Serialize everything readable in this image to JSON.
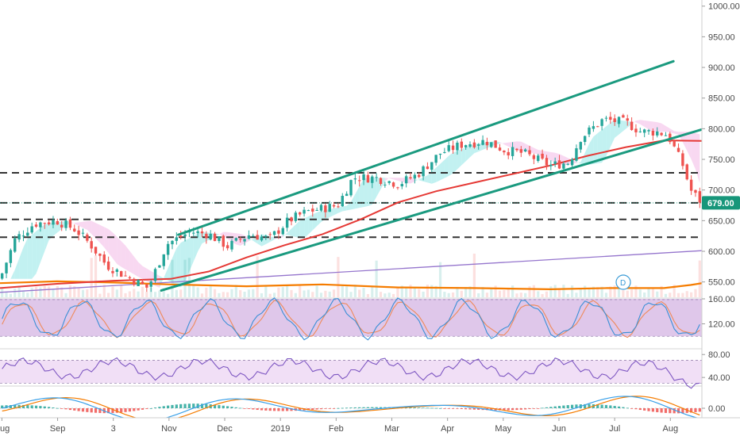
{
  "colors": {
    "up_candle": "#26a69a",
    "down_candle": "#ef5350",
    "trendline": "#1a9a7f",
    "ema_red": "#e53935",
    "ma_orange": "#f57c00",
    "ma_purple": "#9575cd",
    "cloud_cyan": "#8fe6e6",
    "cloud_pink": "#f2b8e6",
    "price_tag": "#17967a",
    "stoch_band": "#d9bde6",
    "rsi_band": "#f0dcf5",
    "macd_line": "#3aa0e8",
    "signal_line": "#f57c00",
    "hist_up": "#26a69a",
    "hist_down": "#ef5350"
  },
  "last_price_label": "679.00",
  "badge_label": "D",
  "chart_data": {
    "type": "line",
    "title": "",
    "x_tick_labels": [
      "Aug",
      "Sep",
      "3",
      "Nov",
      "Dec",
      "2019",
      "Feb",
      "Mar",
      "Apr",
      "May",
      "Jun",
      "Jul",
      "Aug"
    ],
    "y_tick_labels": [
      "1000.00",
      "950.00",
      "900.00",
      "850.00",
      "800.00",
      "750.00",
      "700.00",
      "650.00",
      "600.00",
      "550.00"
    ],
    "ylim": [
      525,
      1010
    ],
    "x_range_days": [
      0,
      370
    ],
    "last_price": 679.0,
    "price_series": {
      "name": "",
      "x_days": [
        0,
        8,
        18,
        30,
        40,
        48,
        56,
        66,
        78,
        88,
        96,
        100,
        110,
        120,
        132,
        142,
        152,
        162,
        170,
        178,
        186,
        198,
        210,
        220,
        232,
        244,
        256,
        266,
        276,
        290,
        300,
        306,
        318,
        330,
        338,
        346,
        352,
        360,
        364,
        370
      ],
      "close": [
        555,
        620,
        645,
        650,
        635,
        610,
        578,
        560,
        540,
        612,
        625,
        632,
        628,
        608,
        628,
        620,
        650,
        665,
        670,
        675,
        720,
        720,
        710,
        725,
        760,
        775,
        780,
        765,
        760,
        740,
        745,
        785,
        815,
        810,
        795,
        795,
        790,
        740,
        700,
        679
      ]
    },
    "horizontal_levels": [
      728,
      679,
      652,
      623
    ],
    "channel_upper": {
      "x_days": [
        94,
        355
      ],
      "y": [
        627,
        910
      ]
    },
    "channel_lower": {
      "x_days": [
        85,
        380
      ],
      "y": [
        536,
        808
      ]
    },
    "ema_line": {
      "x_days": [
        0,
        30,
        60,
        90,
        110,
        130,
        150,
        170,
        190,
        210,
        230,
        250,
        270,
        290,
        310,
        330,
        350,
        370
      ],
      "y": [
        540,
        547,
        552,
        555,
        567,
        590,
        610,
        628,
        652,
        680,
        698,
        712,
        726,
        740,
        756,
        770,
        781,
        780
      ]
    },
    "purple_line": {
      "x_days": [
        0,
        370
      ],
      "y": [
        533,
        601
      ]
    },
    "orange_line": {
      "x_days": [
        0,
        30,
        60,
        90,
        130,
        170,
        210,
        250,
        290,
        320,
        350,
        364,
        370
      ],
      "y": [
        548,
        551,
        549,
        546,
        543,
        546,
        541,
        540,
        538,
        540,
        540,
        545,
        548
      ]
    },
    "stochastic": {
      "y_tick_labels": [
        "160.00",
        "120.00"
      ],
      "ylim": [
        80,
        160
      ],
      "band": [
        100,
        160
      ]
    },
    "rsi": {
      "y_tick_labels": [
        "80.00",
        "40.00"
      ],
      "ylim": [
        25,
        90
      ],
      "band": [
        30,
        70
      ]
    },
    "macd": {
      "y_tick_labels": [
        "0.00"
      ],
      "ylim": [
        -6,
        14
      ]
    }
  }
}
